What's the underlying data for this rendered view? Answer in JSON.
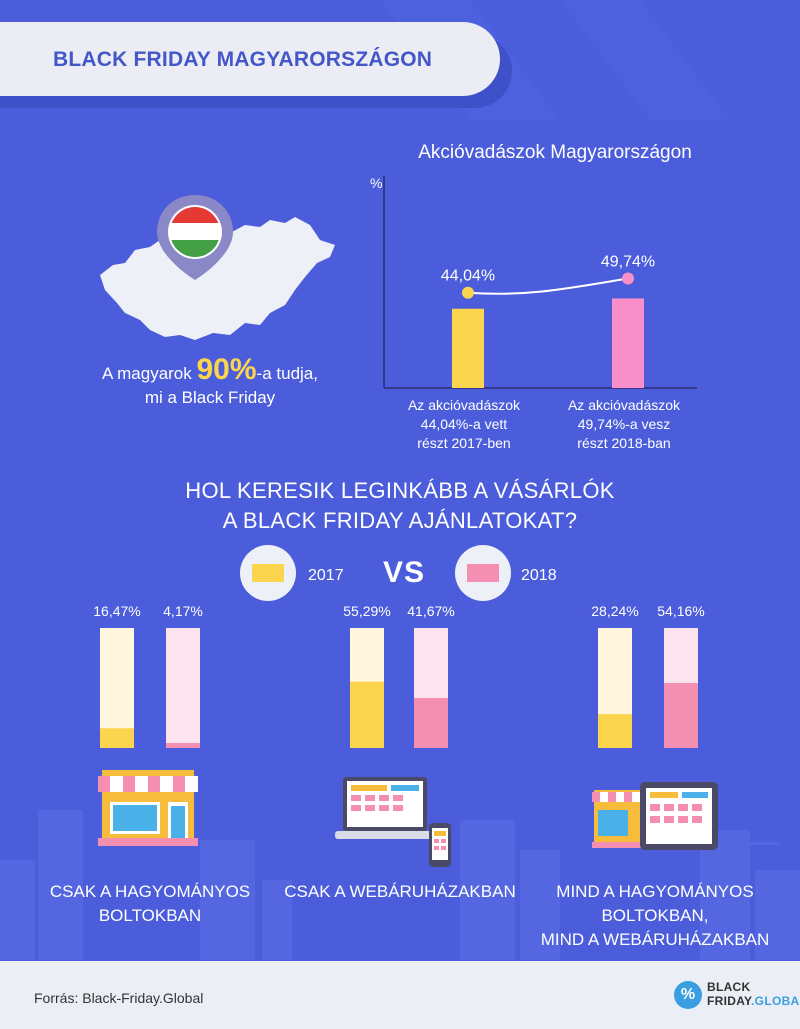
{
  "header": {
    "title": "BLACK FRIDAY MAGYARORSZÁGON"
  },
  "awareness": {
    "prefix": "A magyarok",
    "value": "90%",
    "suffix": "-a tudja,",
    "line2": "mi a Black Friday"
  },
  "colors": {
    "background": "#4b5ddb",
    "yellow": "#fcd54f",
    "pink": "#f48fb1",
    "pink_chart": "#f98fc9",
    "light_yellow": "#fff6dd",
    "light_pink": "#fde3f0"
  },
  "chart_data": [
    {
      "type": "bar",
      "title": "Akcióvadászok Magyarországon",
      "ylabel": "%",
      "categories": [
        "Az akcióvadászok 44,04%-a vett részt 2017-ben",
        "Az akcióvadászok 49,74%-a vesz részt 2018-ban"
      ],
      "category_lines": [
        [
          "Az akcióvadászok",
          "44,04%-a vett",
          "részt 2017-ben"
        ],
        [
          "Az akcióvadászok",
          "49,74%-a vesz",
          "részt 2018-ban"
        ]
      ],
      "values": [
        44.04,
        49.74
      ],
      "value_labels": [
        "44,04%",
        "49,74%"
      ],
      "ylim": [
        0,
        100
      ]
    },
    {
      "type": "bar",
      "title": "HOL KERESIK LEGINKÁBB A VÁSÁRLÓK A BLACK FRIDAY AJÁNLATOKAT?",
      "title_lines": [
        "HOL KERESIK LEGINKÁBB A VÁSÁRLÓK",
        "A BLACK FRIDAY AJÁNLATOKAT?"
      ],
      "categories": [
        "CSAK A HAGYOMÁNYOS BOLTOKBAN",
        "CSAK A WEBÁRUHÁZAKBAN",
        "MIND A HAGYOMÁNYOS BOLTOKBAN, MIND A WEBÁRUHÁZAKBAN"
      ],
      "category_lines": [
        [
          "CSAK A HAGYOMÁNYOS",
          "BOLTOKBAN"
        ],
        [
          "CSAK A WEBÁRUHÁZAKBAN"
        ],
        [
          "MIND A HAGYOMÁNYOS",
          "BOLTOKBAN,",
          "MIND A WEBÁRUHÁZAKBAN"
        ]
      ],
      "series": [
        {
          "name": "2017",
          "values": [
            16.47,
            55.29,
            28.24
          ],
          "labels": [
            "16,47%",
            "55,29%",
            "28,24%"
          ]
        },
        {
          "name": "2018",
          "values": [
            4.17,
            41.67,
            54.16
          ],
          "labels": [
            "4,17%",
            "41,67%",
            "54,16%"
          ]
        }
      ],
      "legend": {
        "vs": "VS"
      },
      "ylim": [
        0,
        100
      ]
    }
  ],
  "footer": {
    "source": "Forrás: Black-Friday.Global",
    "logo_line1": "BLACK",
    "logo_line2a": "FRIDAY",
    "logo_line2b": ".GLOBAL",
    "logo_symbol": "%"
  }
}
